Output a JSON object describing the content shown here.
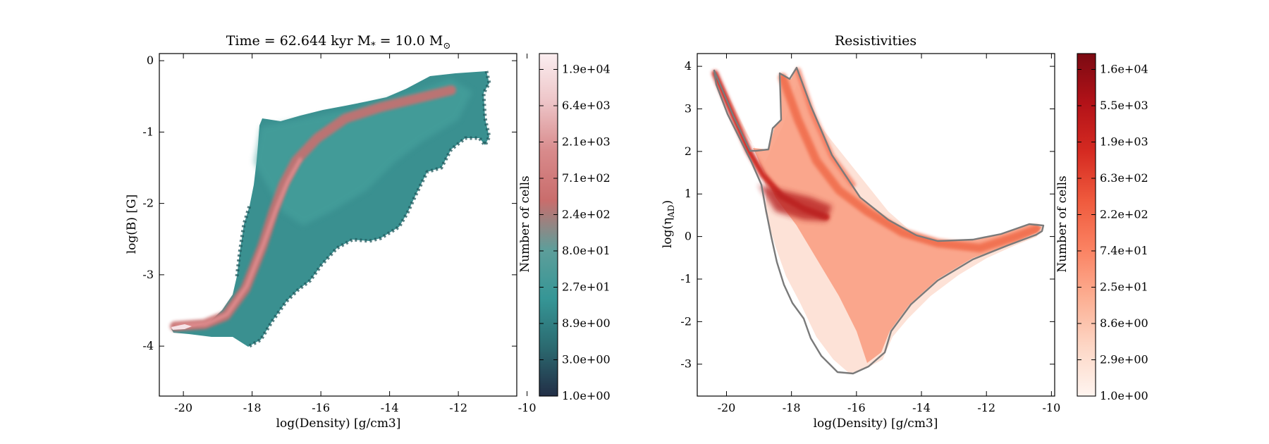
{
  "chart_data": [
    {
      "type": "heatmap",
      "title": "Time = 62.644 kyr    M",
      "title_sub_star": "*",
      "title_mid": " = 10.0 M",
      "title_sub_sun": "⊙",
      "xlabel": "log(Density) [g/cm3]",
      "ylabel": "log(B) [G]",
      "xlim": [
        -20.7,
        -10.3
      ],
      "ylim": [
        -4.7,
        0.1
      ],
      "xticks": [
        -20,
        -18,
        -16,
        -14,
        -12,
        -10
      ],
      "yticks": [
        0,
        -1,
        -2,
        -3,
        -4
      ],
      "colorbar": {
        "label": "Number of cells",
        "ticks": [
          "1.9e+04",
          "6.4e+03",
          "2.1e+03",
          "7.1e+02",
          "2.4e+02",
          "8.0e+01",
          "2.7e+01",
          "8.9e+00",
          "3.0e+00",
          "1.0e+00"
        ],
        "colormap": [
          "#222e46",
          "#2b6a70",
          "#369696",
          "#5e9e9a",
          "#c96d6c",
          "#d88a8b",
          "#edc4c7",
          "#fbeef0"
        ]
      },
      "distribution": {
        "density_peak_track": [
          [
            -20.1,
            -3.75
          ],
          [
            -19.0,
            -3.72
          ],
          [
            -18.3,
            -3.45
          ],
          [
            -17.6,
            -2.8
          ],
          [
            -17.1,
            -2.0
          ],
          [
            -16.5,
            -1.4
          ],
          [
            -15.5,
            -0.85
          ],
          [
            -14.2,
            -0.62
          ],
          [
            -12.5,
            -0.45
          ],
          [
            -11.2,
            -0.25
          ]
        ]
      }
    },
    {
      "type": "heatmap",
      "title": "Resistivities",
      "xlabel": "log(Density) [g/cm3]",
      "ylabel": "log(η",
      "ylabel_sub": "AD",
      "ylabel_end": ")",
      "xlim": [
        -20.9,
        -9.9
      ],
      "ylim": [
        -3.75,
        4.3
      ],
      "xticks": [
        -20,
        -18,
        -16,
        -14,
        -12,
        -10
      ],
      "yticks": [
        4,
        3,
        2,
        1,
        0,
        -1,
        -2,
        -3
      ],
      "colorbar": {
        "label": "Number of cells",
        "ticks": [
          "1.6e+04",
          "5.5e+03",
          "1.9e+03",
          "6.3e+02",
          "2.2e+02",
          "7.4e+01",
          "2.5e+01",
          "8.6e+00",
          "2.9e+00",
          "1.0e+00"
        ],
        "colormap": [
          "#fff5f0",
          "#fdd7c6",
          "#fcaf93",
          "#fb8262",
          "#ef5a3d",
          "#d52a21",
          "#b21218",
          "#7b0a12"
        ]
      },
      "distribution": {
        "density_peak_track": [
          [
            -20.2,
            3.8
          ],
          [
            -19.0,
            1.8
          ],
          [
            -18.3,
            1.0
          ],
          [
            -17.0,
            0.7
          ],
          [
            -15.5,
            0.1
          ],
          [
            -13.5,
            -0.3
          ],
          [
            -12.0,
            -0.2
          ],
          [
            -10.5,
            0.25
          ]
        ]
      }
    }
  ]
}
